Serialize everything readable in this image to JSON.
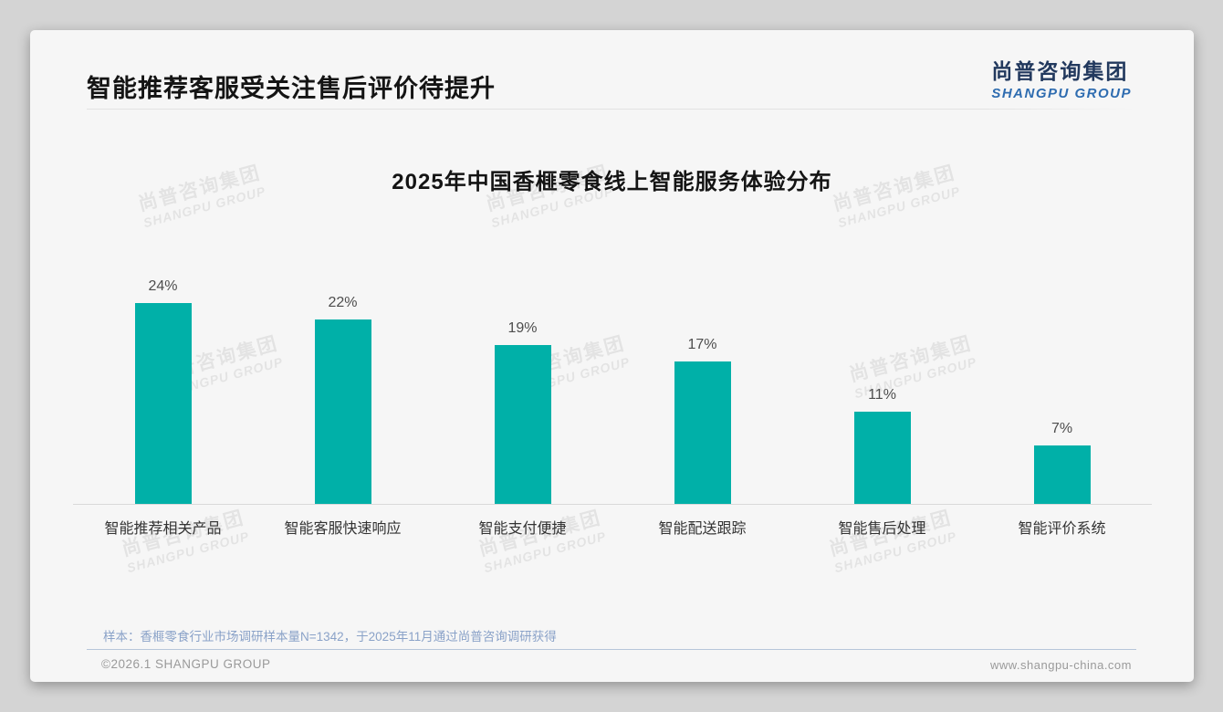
{
  "page": {
    "title": "智能推荐客服受关注售后评价待提升",
    "logo": {
      "cn": "尚普咨询集团",
      "en": "SHANGPU GROUP"
    },
    "watermark": {
      "line1": "尚普咨询集团",
      "line2": "SHANGPU GROUP"
    },
    "footnote": "样本：香榧零食行业市场调研样本量N=1342，于2025年11月通过尚普咨询调研获得",
    "footer": {
      "left": "©2026.1 SHANGPU GROUP",
      "right": "www.shangpu-china.com"
    },
    "colors": {
      "bar": "#00b0a8",
      "logo_cn": "#22395e",
      "logo_en": "#2e6cb0",
      "note": "#8aa2c8",
      "card_bg": "#f6f6f6",
      "outer_bg": "#d4d4d4"
    }
  },
  "chart_data": {
    "type": "bar",
    "title": "2025年中国香榧零食线上智能服务体验分布",
    "categories": [
      "智能推荐相关产品",
      "智能客服快速响应",
      "智能支付便捷",
      "智能配送跟踪",
      "智能售后处理",
      "智能评价系统"
    ],
    "values": [
      24,
      22,
      19,
      17,
      11,
      7
    ],
    "data_labels": [
      "24%",
      "22%",
      "19%",
      "17%",
      "11%",
      "7%"
    ],
    "unit": "%",
    "bar_color": "#00b0a8",
    "xlabel": "",
    "ylabel": "",
    "ylim": [
      0,
      26
    ],
    "grid": false,
    "legend": "none"
  }
}
